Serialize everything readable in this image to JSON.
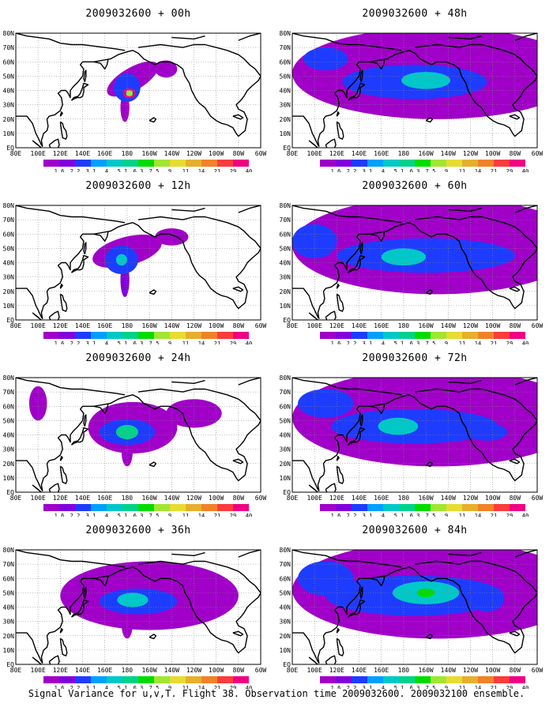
{
  "caption": "Signal Variance for u,v,T. Flight 38. Observation time 2009032600. 2009032100 ensemble.",
  "lat_tick_labels": [
    "80N",
    "70N",
    "60N",
    "50N",
    "40N",
    "30N",
    "20N",
    "10N",
    "EQ"
  ],
  "lon_tick_labels": [
    "80E",
    "100E",
    "120E",
    "140E",
    "160E",
    "180",
    "160W",
    "140W",
    "120W",
    "100W",
    "80W",
    "60W"
  ],
  "colorbar": {
    "levels": [
      "1.6",
      "2.2",
      "3.1",
      "4",
      "5.1",
      "6.3",
      "7.5",
      "9",
      "11",
      "14",
      "21",
      "29",
      "40"
    ],
    "colors": [
      "#a000c8",
      "#8200dc",
      "#1e3cff",
      "#00a0ff",
      "#00c8c8",
      "#00d28c",
      "#00dc00",
      "#a0e632",
      "#e6dc32",
      "#e6af2d",
      "#f08228",
      "#fa3c3c",
      "#f00082"
    ]
  },
  "map_colors": {
    "land_outline": "#000000",
    "grid": "#888888",
    "observation_marker": "#f00082"
  },
  "chart_data": [
    {
      "type": "heatmap",
      "title": "2009032600 + 00h",
      "lon_range": [
        "80E",
        "60W"
      ],
      "lat_range": [
        "EQ",
        "80N"
      ],
      "colorbar_levels": [
        1.6,
        2.2,
        3.1,
        4,
        5.1,
        6.3,
        7.5,
        9,
        11,
        14,
        21,
        29,
        40
      ],
      "blobs": [
        {
          "lon": 185,
          "lat": 48,
          "rx": 26,
          "ry": 8,
          "rot": 30,
          "val": 2.0
        },
        {
          "lon": 180,
          "lat": 42,
          "rx": 12,
          "ry": 10,
          "val": 3.5
        },
        {
          "lon": 178,
          "lat": 28,
          "rx": 4,
          "ry": 10,
          "val": 2.0
        },
        {
          "lon": 215,
          "lat": 55,
          "rx": 10,
          "ry": 6,
          "val": 2.0
        },
        {
          "lon": 182,
          "lat": 38,
          "rx": 3,
          "ry": 3,
          "val": 9
        }
      ]
    },
    {
      "type": "heatmap",
      "title": "2009032600 + 12h",
      "lon_range": [
        "80E",
        "60W"
      ],
      "lat_range": [
        "EQ",
        "80N"
      ],
      "colorbar_levels": [
        1.6,
        2.2,
        3.1,
        4,
        5.1,
        6.3,
        7.5,
        9,
        11,
        14,
        21,
        29,
        40
      ],
      "blobs": [
        {
          "lon": 180,
          "lat": 48,
          "rx": 32,
          "ry": 10,
          "rot": 15,
          "val": 2.0
        },
        {
          "lon": 175,
          "lat": 42,
          "rx": 15,
          "ry": 10,
          "val": 3.5
        },
        {
          "lon": 178,
          "lat": 28,
          "rx": 4,
          "ry": 12,
          "val": 2.2
        },
        {
          "lon": 220,
          "lat": 58,
          "rx": 15,
          "ry": 6,
          "val": 1.8
        },
        {
          "lon": 175,
          "lat": 42,
          "rx": 5,
          "ry": 4,
          "val": 5.5
        }
      ]
    },
    {
      "type": "heatmap",
      "title": "2009032600 + 24h",
      "lon_range": [
        "80E",
        "60W"
      ],
      "lat_range": [
        "EQ",
        "80N"
      ],
      "colorbar_levels": [
        1.6,
        2.2,
        3.1,
        4,
        5.1,
        6.3,
        7.5,
        9,
        11,
        14,
        21,
        29,
        40
      ],
      "blobs": [
        {
          "lon": 185,
          "lat": 45,
          "rx": 40,
          "ry": 18,
          "val": 1.8
        },
        {
          "lon": 180,
          "lat": 42,
          "rx": 25,
          "ry": 9,
          "val": 3.5
        },
        {
          "lon": 180,
          "lat": 42,
          "rx": 10,
          "ry": 5,
          "val": 6.5
        },
        {
          "lon": 180,
          "lat": 28,
          "rx": 5,
          "ry": 10,
          "val": 2.0
        },
        {
          "lon": 240,
          "lat": 55,
          "rx": 25,
          "ry": 10,
          "val": 1.8
        },
        {
          "lon": 100,
          "lat": 62,
          "rx": 8,
          "ry": 12,
          "val": 1.8
        }
      ]
    },
    {
      "type": "heatmap",
      "title": "2009032600 + 36h",
      "lon_range": [
        "80E",
        "60W"
      ],
      "lat_range": [
        "EQ",
        "80N"
      ],
      "colorbar_levels": [
        1.6,
        2.2,
        3.1,
        4,
        5.1,
        6.3,
        7.5,
        9,
        11,
        14,
        21,
        29,
        40
      ],
      "blobs": [
        {
          "lon": 200,
          "lat": 48,
          "rx": 80,
          "ry": 24,
          "val": 1.8
        },
        {
          "lon": 190,
          "lat": 44,
          "rx": 35,
          "ry": 9,
          "val": 3.5
        },
        {
          "lon": 185,
          "lat": 45,
          "rx": 14,
          "ry": 5,
          "val": 6.0
        },
        {
          "lon": 180,
          "lat": 28,
          "rx": 5,
          "ry": 10,
          "val": 2.0
        }
      ]
    },
    {
      "type": "heatmap",
      "title": "2009032600 + 48h",
      "lon_range": [
        "80E",
        "60W"
      ],
      "lat_range": [
        "EQ",
        "80N"
      ],
      "colorbar_levels": [
        1.6,
        2.2,
        3.1,
        4,
        5.1,
        6.3,
        7.5,
        9,
        11,
        14,
        21,
        29,
        40
      ],
      "blobs": [
        {
          "lon": 210,
          "lat": 52,
          "rx": 130,
          "ry": 32,
          "val": 1.8
        },
        {
          "lon": 190,
          "lat": 46,
          "rx": 65,
          "ry": 12,
          "val": 3.5
        },
        {
          "lon": 110,
          "lat": 62,
          "rx": 20,
          "ry": 8,
          "val": 3.2
        },
        {
          "lon": 200,
          "lat": 47,
          "rx": 22,
          "ry": 6,
          "val": 6.0
        }
      ]
    },
    {
      "type": "heatmap",
      "title": "2009032600 + 60h",
      "lon_range": [
        "80E",
        "60W"
      ],
      "lat_range": [
        "EQ",
        "80N"
      ],
      "colorbar_levels": [
        1.6,
        2.2,
        3.1,
        4,
        5.1,
        6.3,
        7.5,
        9,
        11,
        14,
        21,
        29,
        40
      ],
      "blobs": [
        {
          "lon": 210,
          "lat": 52,
          "rx": 130,
          "ry": 34,
          "val": 1.8
        },
        {
          "lon": 200,
          "lat": 45,
          "rx": 80,
          "ry": 12,
          "val": 3.5
        },
        {
          "lon": 100,
          "lat": 55,
          "rx": 20,
          "ry": 12,
          "val": 3.2
        },
        {
          "lon": 180,
          "lat": 44,
          "rx": 20,
          "ry": 6,
          "val": 5.5
        }
      ]
    },
    {
      "type": "heatmap",
      "title": "2009032600 + 72h",
      "lon_range": [
        "80E",
        "60W"
      ],
      "lat_range": [
        "EQ",
        "80N"
      ],
      "colorbar_levels": [
        1.6,
        2.2,
        3.1,
        4,
        5.1,
        6.3,
        7.5,
        9,
        11,
        14,
        21,
        29,
        40
      ],
      "blobs": [
        {
          "lon": 210,
          "lat": 52,
          "rx": 130,
          "ry": 34,
          "val": 1.8
        },
        {
          "lon": 110,
          "lat": 62,
          "rx": 25,
          "ry": 10,
          "val": 3.2
        },
        {
          "lon": 190,
          "lat": 46,
          "rx": 75,
          "ry": 12,
          "val": 3.5
        },
        {
          "lon": 175,
          "lat": 46,
          "rx": 18,
          "ry": 6,
          "val": 5.5
        },
        {
          "lon": 255,
          "lat": 42,
          "rx": 18,
          "ry": 6,
          "val": 3.2
        }
      ]
    },
    {
      "type": "heatmap",
      "title": "2009032600 + 84h",
      "lon_range": [
        "80E",
        "60W"
      ],
      "lat_range": [
        "EQ",
        "80N"
      ],
      "colorbar_levels": [
        1.6,
        2.2,
        3.1,
        4,
        5.1,
        6.3,
        7.5,
        9,
        11,
        14,
        21,
        29,
        40
      ],
      "blobs": [
        {
          "lon": 210,
          "lat": 52,
          "rx": 130,
          "ry": 34,
          "val": 1.8
        },
        {
          "lon": 110,
          "lat": 60,
          "rx": 25,
          "ry": 12,
          "val": 3.2
        },
        {
          "lon": 190,
          "lat": 48,
          "rx": 80,
          "ry": 14,
          "val": 3.5
        },
        {
          "lon": 200,
          "lat": 50,
          "rx": 30,
          "ry": 8,
          "val": 5.5
        },
        {
          "lon": 200,
          "lat": 50,
          "rx": 8,
          "ry": 3,
          "val": 7.8
        },
        {
          "lon": 255,
          "lat": 45,
          "rx": 15,
          "ry": 8,
          "val": 3.5
        }
      ]
    }
  ]
}
